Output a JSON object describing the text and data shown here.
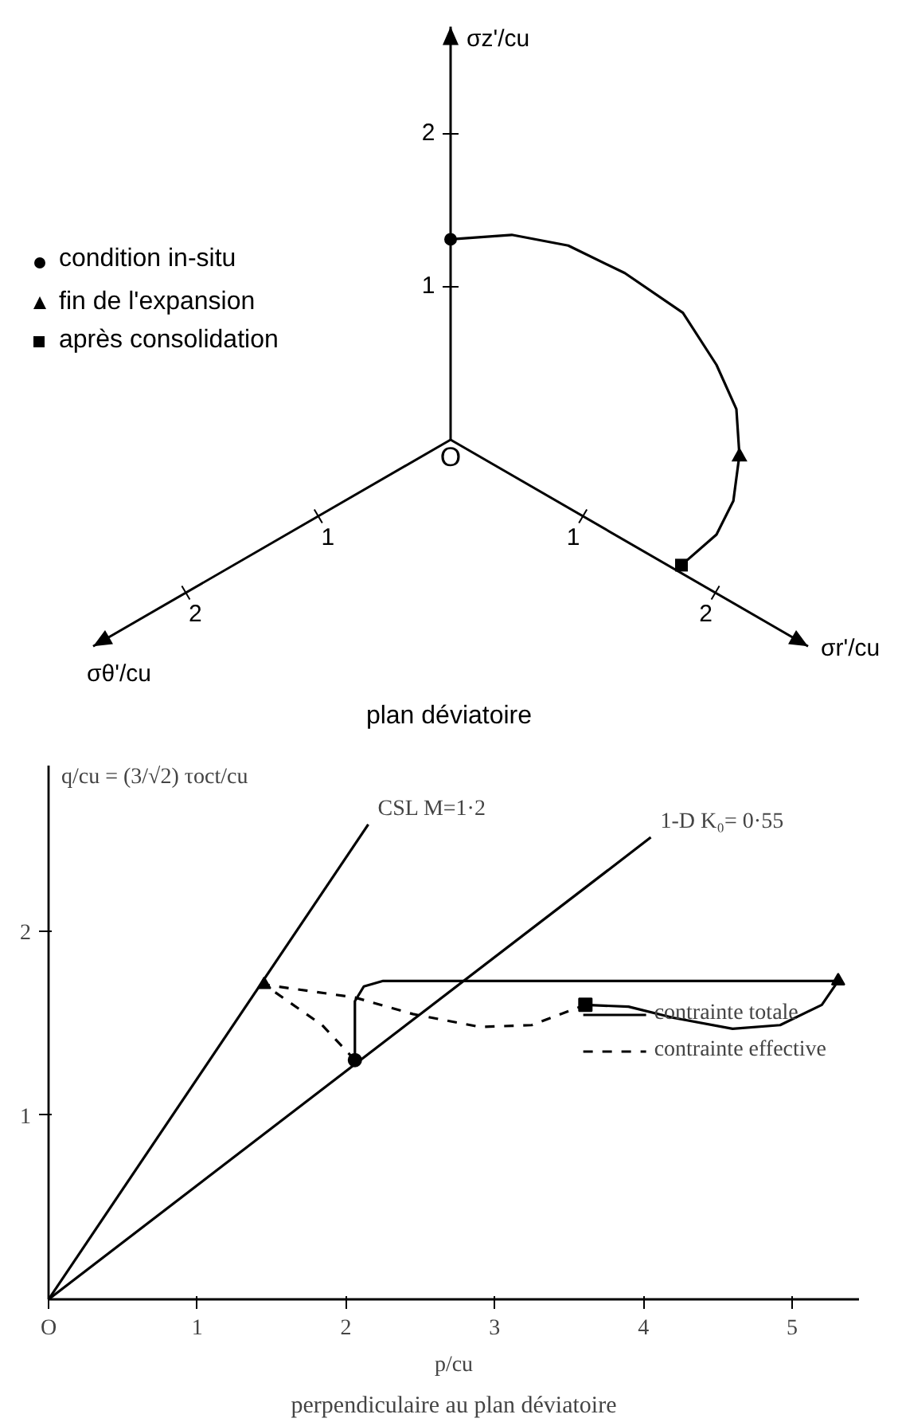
{
  "chart_data": [
    {
      "type": "other",
      "title": "plan déviatoire",
      "xlabel": "σr'/cu",
      "x2label": "σθ'/cu",
      "ylabel": "σz'/cu",
      "annotations": [
        "1",
        "2",
        "1",
        "2",
        "1",
        "2",
        "O",
        "condition in-situ",
        "fin de l'expansion",
        "après consolidation"
      ]
    },
    {
      "type": "line",
      "title": "perpendiculaire au plan déviatoire",
      "xlabel": "p/cu",
      "ylabel": "q/cu = (3/√2) τoct/cu",
      "xlim": [
        0,
        5.45
      ],
      "ylim": [
        0,
        2.9
      ],
      "xticks": [
        {
          "value": 0,
          "label": "O"
        },
        1,
        2,
        3,
        4,
        5
      ],
      "yticks": [
        1,
        2
      ],
      "legend": "right",
      "annotations": [
        {
          "text": "CSL M=1·2",
          "x": 2.15,
          "y": 2.58
        },
        {
          "text": "1-D K₀= 0·55",
          "x": 4.05,
          "y": 2.51
        }
      ],
      "series": [
        {
          "color": "#000000",
          "line_style": "solid",
          "x": [
            0,
            2.15
          ],
          "values": [
            0,
            2.58
          ]
        },
        {
          "color": "#000000",
          "line_style": "solid",
          "x": [
            0,
            4.05
          ],
          "values": [
            0,
            2.51
          ]
        },
        {
          "name": "contrainte totale",
          "color": "#000000",
          "line_style": "solid",
          "x": [
            2.06,
            2.06,
            2.12,
            2.25,
            5.31,
            5.2,
            4.92,
            4.6,
            4.2,
            3.9,
            3.61
          ],
          "values": [
            1.3,
            1.62,
            1.7,
            1.73,
            1.73,
            1.6,
            1.49,
            1.47,
            1.53,
            1.59,
            1.6
          ]
        },
        {
          "name": "contrainte effective",
          "color": "#000000",
          "line_style": "dashed",
          "x": [
            2.06,
            1.84,
            1.45,
            2.06,
            2.45,
            2.9,
            3.25,
            3.61
          ],
          "values": [
            1.3,
            1.49,
            1.71,
            1.64,
            1.55,
            1.48,
            1.49,
            1.6
          ]
        },
        {
          "type": "scatter",
          "color": "#000000",
          "marker": "circle",
          "x": [
            2.06
          ],
          "values": [
            1.3
          ]
        },
        {
          "type": "scatter",
          "color": "#000000",
          "marker": "triangle",
          "x": [
            1.45,
            5.31
          ],
          "values": [
            1.71,
            1.73
          ]
        },
        {
          "type": "scatter",
          "color": "#000000",
          "marker": "square",
          "x": [
            3.61
          ],
          "values": [
            1.6
          ]
        }
      ]
    }
  ]
}
